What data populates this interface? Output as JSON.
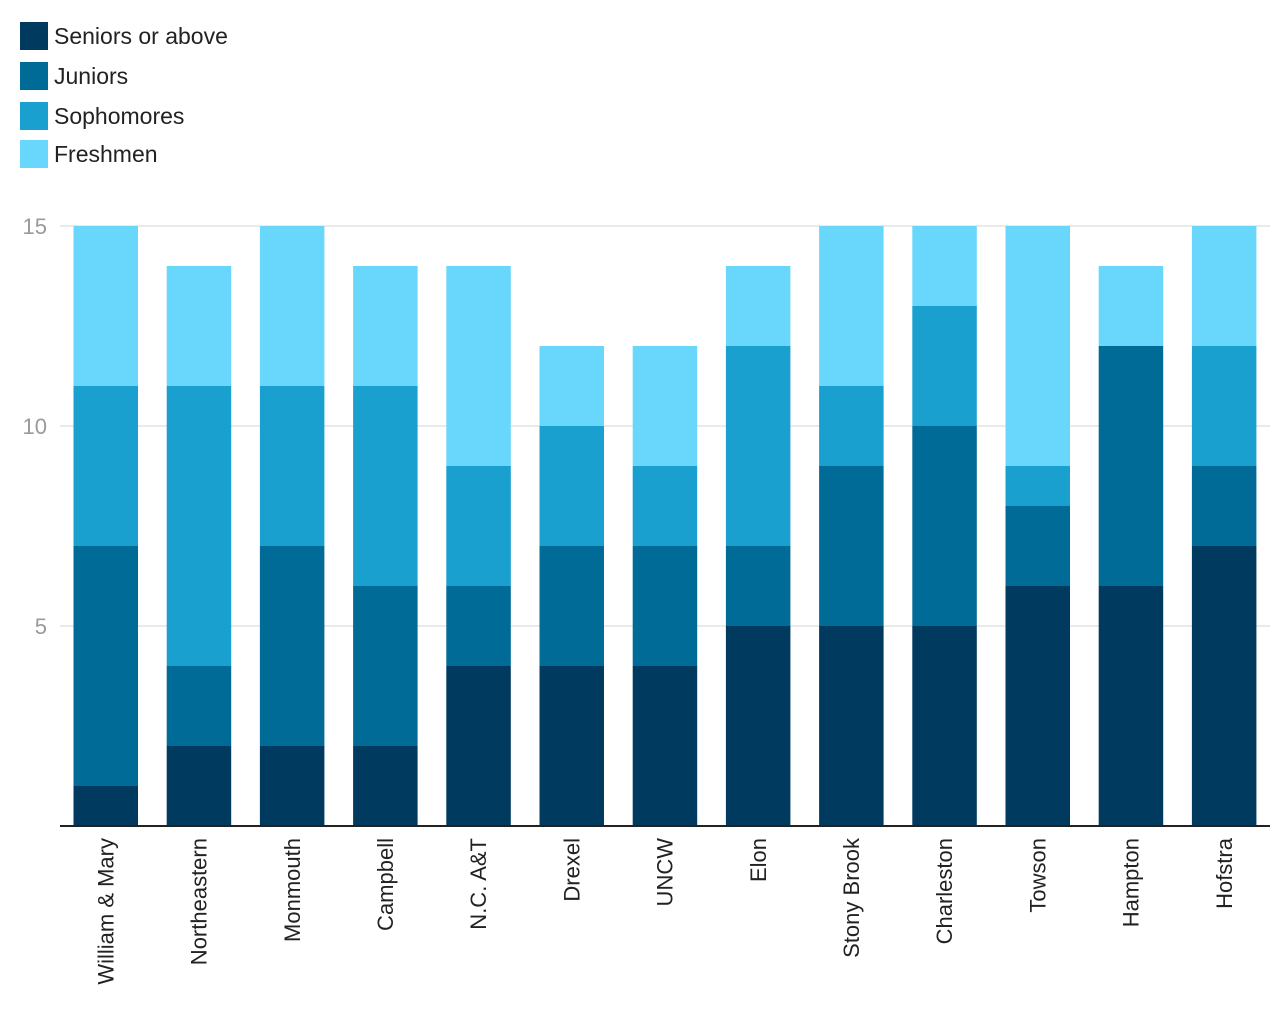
{
  "chart_data": {
    "type": "bar",
    "stacked": true,
    "title": "",
    "xlabel": "",
    "ylabel": "",
    "ylim": [
      0,
      15
    ],
    "yticks": [
      5,
      10,
      15
    ],
    "grid": true,
    "legend_position": "top-left",
    "categories": [
      "William & Mary",
      "Northeastern",
      "Monmouth",
      "Campbell",
      "N.C. A&T",
      "Drexel",
      "UNCW",
      "Elon",
      "Stony Brook",
      "Charleston",
      "Towson",
      "Hampton",
      "Hofstra"
    ],
    "series": [
      {
        "name": "Seniors or above",
        "color": "#003b5f",
        "values": [
          1,
          2,
          2,
          2,
          4,
          4,
          4,
          5,
          5,
          5,
          6,
          6,
          7
        ]
      },
      {
        "name": "Juniors",
        "color": "#006b96",
        "values": [
          6,
          2,
          5,
          4,
          2,
          3,
          3,
          2,
          4,
          5,
          2,
          6,
          2
        ]
      },
      {
        "name": "Sophomores",
        "color": "#1aa0cf",
        "values": [
          4,
          7,
          4,
          5,
          3,
          3,
          2,
          5,
          2,
          3,
          1,
          0,
          3
        ]
      },
      {
        "name": "Freshmen",
        "color": "#69d7fb",
        "values": [
          4,
          3,
          4,
          3,
          5,
          2,
          3,
          2,
          4,
          2,
          6,
          2,
          3
        ]
      }
    ]
  }
}
